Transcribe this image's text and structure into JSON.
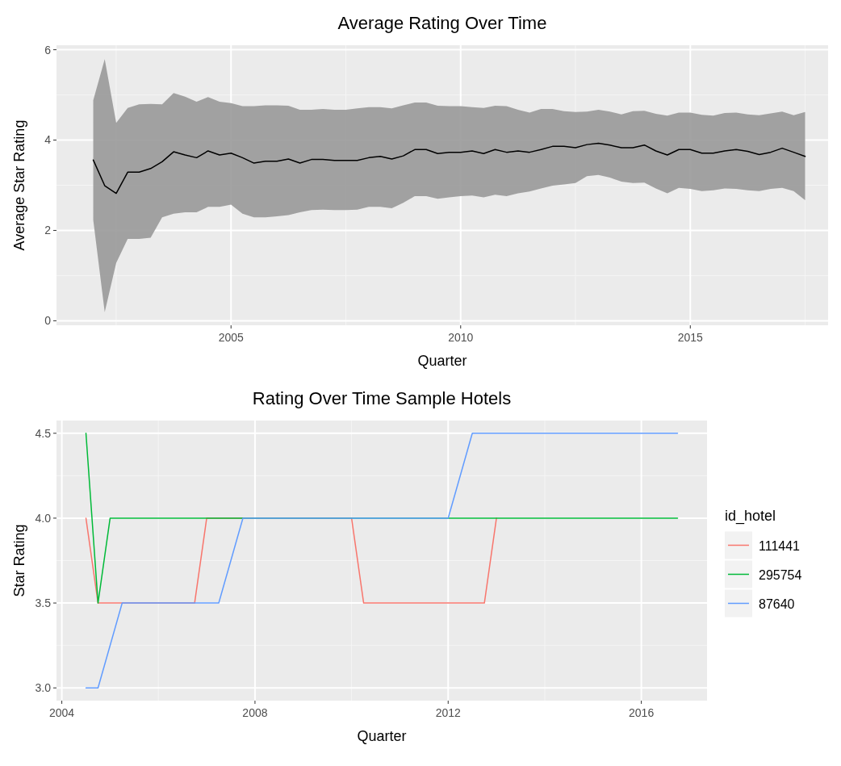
{
  "chart_data": [
    {
      "type": "line",
      "title": "Average Rating Over Time",
      "xlabel": "Quarter",
      "ylabel": "Average Star Rating",
      "xlim": [
        2001.2,
        2018.0
      ],
      "ylim": [
        -0.1,
        6.1
      ],
      "xticks": [
        2005,
        2010,
        2015
      ],
      "yticks": [
        0,
        2,
        4,
        6
      ],
      "grid": true,
      "x": [
        2002.0,
        2002.25,
        2002.5,
        2002.75,
        2003.0,
        2003.25,
        2003.5,
        2003.75,
        2004.0,
        2004.25,
        2004.5,
        2004.75,
        2005.0,
        2005.25,
        2005.5,
        2005.75,
        2006.0,
        2006.25,
        2006.5,
        2006.75,
        2007.0,
        2007.25,
        2007.5,
        2007.75,
        2008.0,
        2008.25,
        2008.5,
        2008.75,
        2009.0,
        2009.25,
        2009.5,
        2009.75,
        2010.0,
        2010.25,
        2010.5,
        2010.75,
        2011.0,
        2011.25,
        2011.5,
        2011.75,
        2012.0,
        2012.25,
        2012.5,
        2012.75,
        2013.0,
        2013.25,
        2013.5,
        2013.75,
        2014.0,
        2014.25,
        2014.5,
        2014.75,
        2015.0,
        2015.25,
        2015.5,
        2015.75,
        2016.0,
        2016.25,
        2016.5,
        2016.75,
        2017.0,
        2017.25,
        2017.5
      ],
      "series": [
        {
          "color": "#000000",
          "values": [
            3.56,
            2.99,
            2.82,
            3.29,
            3.29,
            3.37,
            3.52,
            3.74,
            3.67,
            3.61,
            3.76,
            3.67,
            3.71,
            3.61,
            3.49,
            3.53,
            3.53,
            3.58,
            3.49,
            3.57,
            3.57,
            3.55,
            3.55,
            3.55,
            3.61,
            3.64,
            3.58,
            3.65,
            3.79,
            3.79,
            3.7,
            3.73,
            3.73,
            3.76,
            3.7,
            3.79,
            3.73,
            3.76,
            3.73,
            3.79,
            3.86,
            3.86,
            3.83,
            3.9,
            3.93,
            3.89,
            3.83,
            3.83,
            3.89,
            3.76,
            3.67,
            3.79,
            3.79,
            3.71,
            3.71,
            3.76,
            3.79,
            3.75,
            3.68,
            3.73,
            3.82,
            3.73,
            3.64
          ],
          "upper": [
            4.88,
            5.79,
            4.38,
            4.71,
            4.79,
            4.8,
            4.79,
            5.04,
            4.96,
            4.85,
            4.95,
            4.85,
            4.82,
            4.75,
            4.75,
            4.77,
            4.77,
            4.76,
            4.67,
            4.67,
            4.69,
            4.67,
            4.67,
            4.7,
            4.73,
            4.73,
            4.7,
            4.77,
            4.83,
            4.83,
            4.76,
            4.75,
            4.75,
            4.73,
            4.71,
            4.76,
            4.75,
            4.67,
            4.61,
            4.69,
            4.69,
            4.64,
            4.62,
            4.63,
            4.67,
            4.63,
            4.57,
            4.64,
            4.65,
            4.58,
            4.54,
            4.61,
            4.61,
            4.56,
            4.54,
            4.6,
            4.61,
            4.57,
            4.55,
            4.59,
            4.63,
            4.55,
            4.62
          ],
          "lower": [
            2.23,
            0.19,
            1.28,
            1.81,
            1.81,
            1.84,
            2.29,
            2.37,
            2.4,
            2.4,
            2.52,
            2.52,
            2.57,
            2.37,
            2.29,
            2.29,
            2.31,
            2.34,
            2.4,
            2.45,
            2.46,
            2.45,
            2.45,
            2.46,
            2.52,
            2.52,
            2.49,
            2.61,
            2.76,
            2.76,
            2.7,
            2.73,
            2.76,
            2.77,
            2.73,
            2.79,
            2.76,
            2.82,
            2.86,
            2.93,
            2.99,
            3.02,
            3.05,
            3.2,
            3.23,
            3.17,
            3.08,
            3.05,
            3.06,
            2.93,
            2.82,
            2.94,
            2.92,
            2.87,
            2.89,
            2.93,
            2.92,
            2.89,
            2.87,
            2.92,
            2.94,
            2.87,
            2.67
          ]
        }
      ]
    },
    {
      "type": "line",
      "title": "Rating Over Time Sample Hotels",
      "xlabel": "Quarter",
      "ylabel": "Star Rating",
      "legend_title": "id_hotel",
      "legend": "right",
      "xlim": [
        2003.89,
        2017.36
      ],
      "ylim": [
        2.925,
        4.575
      ],
      "xticks": [
        2004,
        2008,
        2012,
        2016
      ],
      "yticks": [
        {
          "value": 3,
          "label": "3.0"
        },
        {
          "value": 3.5,
          "label": "3.5"
        },
        {
          "value": 4,
          "label": "4.0"
        },
        {
          "value": 4.5,
          "label": "4.5"
        }
      ],
      "grid": true,
      "series": [
        {
          "name": "111441",
          "color": "#f8766d",
          "x": [
            2004.5,
            2004.75,
            2006.75,
            2007.0,
            2010.0,
            2010.25,
            2012.75,
            2013.0
          ],
          "values": [
            4.0,
            3.5,
            3.5,
            4.0,
            4.0,
            3.5,
            3.5,
            4.0
          ]
        },
        {
          "name": "295754",
          "color": "#00ba38",
          "x": [
            2004.5,
            2004.75,
            2005.0,
            2016.75
          ],
          "values": [
            4.5,
            3.5,
            4.0,
            4.0
          ]
        },
        {
          "name": "87640",
          "color": "#619cff",
          "x": [
            2004.5,
            2004.75,
            2005.25,
            2007.25,
            2007.75,
            2012.0,
            2012.5,
            2016.75
          ],
          "values": [
            3.0,
            3.0,
            3.5,
            3.5,
            4.0,
            4.0,
            4.5,
            4.5
          ]
        }
      ]
    }
  ]
}
